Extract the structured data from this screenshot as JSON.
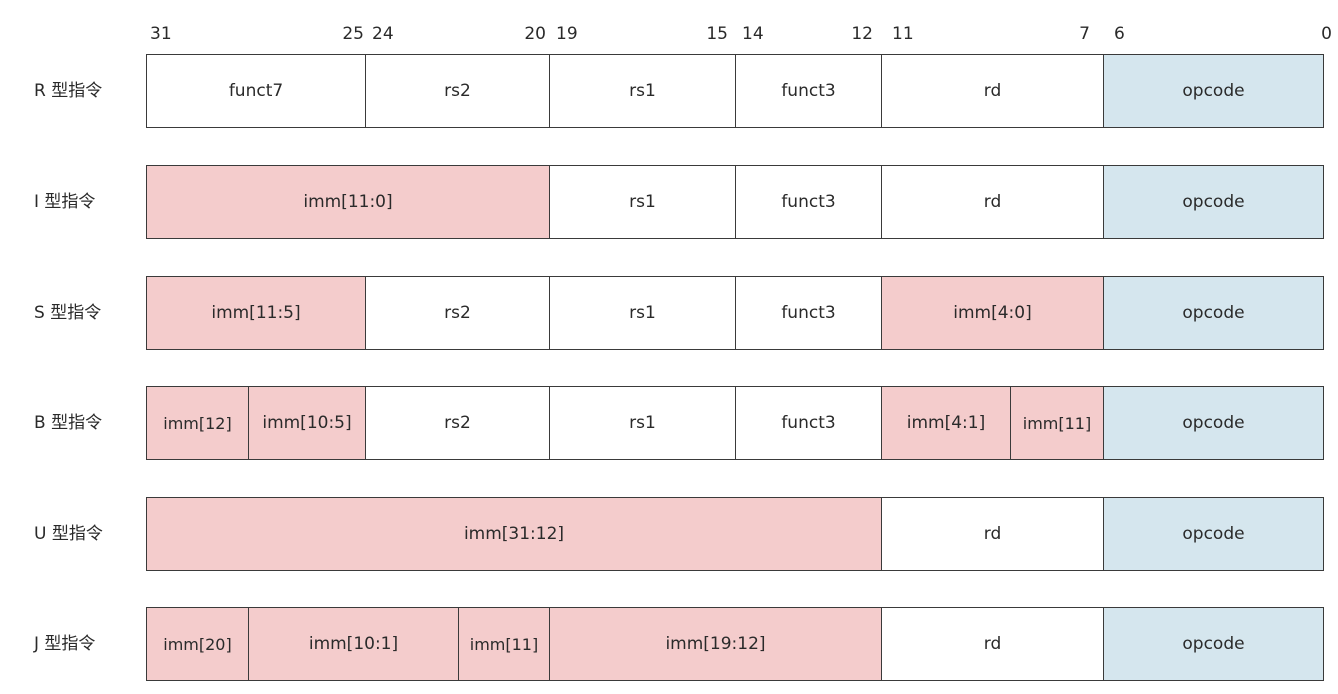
{
  "bit_labels": [
    "31",
    "25",
    "24",
    "20",
    "19",
    "15",
    "14",
    "12",
    "11",
    "7",
    "6",
    "0"
  ],
  "formats": [
    {
      "label": "R 型指令",
      "fields": [
        {
          "text": "funct7",
          "kind": "plain"
        },
        {
          "text": "rs2",
          "kind": "plain"
        },
        {
          "text": "rs1",
          "kind": "plain"
        },
        {
          "text": "funct3",
          "kind": "plain"
        },
        {
          "text": "rd",
          "kind": "plain"
        },
        {
          "text": "opcode",
          "kind": "op"
        }
      ]
    },
    {
      "label": "I 型指令",
      "fields": [
        {
          "text": "imm[11:0]",
          "kind": "imm"
        },
        {
          "text": "rs1",
          "kind": "plain"
        },
        {
          "text": "funct3",
          "kind": "plain"
        },
        {
          "text": "rd",
          "kind": "plain"
        },
        {
          "text": "opcode",
          "kind": "op"
        }
      ]
    },
    {
      "label": "S 型指令",
      "fields": [
        {
          "text": "imm[11:5]",
          "kind": "imm"
        },
        {
          "text": "rs2",
          "kind": "plain"
        },
        {
          "text": "rs1",
          "kind": "plain"
        },
        {
          "text": "funct3",
          "kind": "plain"
        },
        {
          "text": "imm[4:0]",
          "kind": "imm"
        },
        {
          "text": "opcode",
          "kind": "op"
        }
      ]
    },
    {
      "label": "B 型指令",
      "fields": [
        {
          "text": "imm[12]",
          "kind": "imm"
        },
        {
          "text": "imm[10:5]",
          "kind": "imm"
        },
        {
          "text": "rs2",
          "kind": "plain"
        },
        {
          "text": "rs1",
          "kind": "plain"
        },
        {
          "text": "funct3",
          "kind": "plain"
        },
        {
          "text": "imm[4:1]",
          "kind": "imm"
        },
        {
          "text": "imm[11]",
          "kind": "imm"
        },
        {
          "text": "opcode",
          "kind": "op"
        }
      ]
    },
    {
      "label": "U 型指令",
      "fields": [
        {
          "text": "imm[31:12]",
          "kind": "imm"
        },
        {
          "text": "rd",
          "kind": "plain"
        },
        {
          "text": "opcode",
          "kind": "op"
        }
      ]
    },
    {
      "label": "J 型指令",
      "fields": [
        {
          "text": "imm[20]",
          "kind": "imm"
        },
        {
          "text": "imm[10:1]",
          "kind": "imm"
        },
        {
          "text": "imm[11]",
          "kind": "imm"
        },
        {
          "text": "imm[19:12]",
          "kind": "imm"
        },
        {
          "text": "rd",
          "kind": "plain"
        },
        {
          "text": "opcode",
          "kind": "op"
        }
      ]
    }
  ],
  "colors": {
    "immediate_fill": "#f4cccc",
    "opcode_fill": "#d5e6ee",
    "plain_fill": "#ffffff",
    "border": "#3a3a3a"
  }
}
